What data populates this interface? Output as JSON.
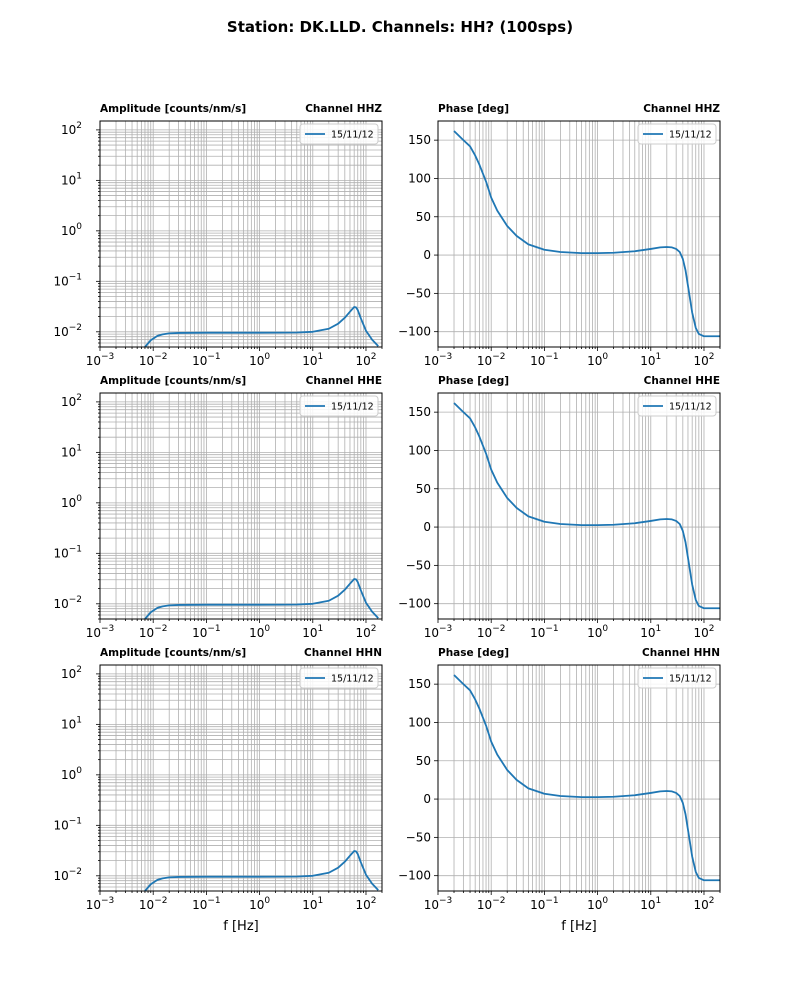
{
  "figure": {
    "suptitle": "Station: DK.LLD. Channels: HH? (100sps)"
  },
  "colors": {
    "line": "#1f77b4",
    "grid": "#b0b0b0"
  },
  "chart_data": [
    {
      "type": "line",
      "kind": "amplitude",
      "xscale": "log",
      "yscale": "log",
      "title": "Amplitude [counts/nm/s]",
      "channel_label": "Channel HHZ",
      "xlabel": "",
      "xlim": [
        0.001,
        200
      ],
      "ylim": [
        0.005,
        150
      ],
      "yticks": [
        0.01,
        0.1,
        1,
        10,
        100
      ],
      "series": [
        {
          "name": "15/11/12",
          "x": [
            0.007,
            0.009,
            0.012,
            0.015,
            0.02,
            0.03,
            0.1,
            1,
            5,
            10,
            20,
            30,
            40,
            50,
            60,
            65,
            70,
            80,
            100,
            130,
            170
          ],
          "y": [
            0.005,
            0.0068,
            0.0083,
            0.0089,
            0.0093,
            0.0095,
            0.0096,
            0.0096,
            0.0097,
            0.01,
            0.0115,
            0.0145,
            0.019,
            0.025,
            0.031,
            0.0305,
            0.027,
            0.0185,
            0.0105,
            0.007,
            0.0052
          ]
        }
      ],
      "legend_loc": "upper-right"
    },
    {
      "type": "line",
      "kind": "phase",
      "xscale": "log",
      "yscale": "linear",
      "title": "Phase [deg]",
      "channel_label": "Channel HHZ",
      "xlabel": "",
      "xlim": [
        0.001,
        200
      ],
      "ylim": [
        -120,
        175
      ],
      "yticks": [
        -100,
        -50,
        0,
        50,
        100,
        150
      ],
      "series": [
        {
          "name": "15/11/12",
          "x": [
            0.002,
            0.003,
            0.004,
            0.005,
            0.006,
            0.008,
            0.01,
            0.013,
            0.02,
            0.03,
            0.05,
            0.1,
            0.2,
            0.5,
            1,
            2,
            5,
            10,
            15,
            20,
            25,
            30,
            35,
            40,
            45,
            50,
            60,
            70,
            80,
            100,
            130,
            200
          ],
          "y": [
            162,
            150,
            142,
            130,
            118,
            96,
            75,
            58,
            38,
            25,
            14,
            7,
            4,
            2.5,
            2.5,
            3,
            5,
            8,
            10,
            10.5,
            10,
            8,
            4,
            -5,
            -20,
            -40,
            -75,
            -95,
            -103,
            -106,
            -106,
            -106
          ]
        }
      ],
      "legend_loc": "upper-right"
    },
    {
      "type": "line",
      "kind": "amplitude",
      "xscale": "log",
      "yscale": "log",
      "title": "Amplitude [counts/nm/s]",
      "channel_label": "Channel HHE",
      "xlabel": "",
      "xlim": [
        0.001,
        200
      ],
      "ylim": [
        0.005,
        150
      ],
      "yticks": [
        0.01,
        0.1,
        1,
        10,
        100
      ],
      "series": [
        {
          "name": "15/11/12",
          "x": [
            0.007,
            0.009,
            0.012,
            0.015,
            0.02,
            0.03,
            0.1,
            1,
            5,
            10,
            20,
            30,
            40,
            50,
            60,
            65,
            70,
            80,
            100,
            130,
            170
          ],
          "y": [
            0.005,
            0.0068,
            0.0083,
            0.0089,
            0.0093,
            0.0095,
            0.0096,
            0.0096,
            0.0097,
            0.01,
            0.0115,
            0.0145,
            0.019,
            0.025,
            0.031,
            0.0305,
            0.027,
            0.0185,
            0.0105,
            0.007,
            0.0052
          ]
        }
      ],
      "legend_loc": "upper-right"
    },
    {
      "type": "line",
      "kind": "phase",
      "xscale": "log",
      "yscale": "linear",
      "title": "Phase [deg]",
      "channel_label": "Channel HHE",
      "xlabel": "",
      "xlim": [
        0.001,
        200
      ],
      "ylim": [
        -120,
        175
      ],
      "yticks": [
        -100,
        -50,
        0,
        50,
        100,
        150
      ],
      "series": [
        {
          "name": "15/11/12",
          "x": [
            0.002,
            0.003,
            0.004,
            0.005,
            0.006,
            0.008,
            0.01,
            0.013,
            0.02,
            0.03,
            0.05,
            0.1,
            0.2,
            0.5,
            1,
            2,
            5,
            10,
            15,
            20,
            25,
            30,
            35,
            40,
            45,
            50,
            60,
            70,
            80,
            100,
            130,
            200
          ],
          "y": [
            162,
            150,
            142,
            130,
            118,
            96,
            75,
            58,
            38,
            25,
            14,
            7,
            4,
            2.5,
            2.5,
            3,
            5,
            8,
            10,
            10.5,
            10,
            8,
            4,
            -5,
            -20,
            -40,
            -75,
            -95,
            -103,
            -106,
            -106,
            -106
          ]
        }
      ],
      "legend_loc": "upper-right"
    },
    {
      "type": "line",
      "kind": "amplitude",
      "xscale": "log",
      "yscale": "log",
      "title": "Amplitude [counts/nm/s]",
      "channel_label": "Channel HHN",
      "xlabel": "f [Hz]",
      "xlim": [
        0.001,
        200
      ],
      "ylim": [
        0.005,
        150
      ],
      "yticks": [
        0.01,
        0.1,
        1,
        10,
        100
      ],
      "series": [
        {
          "name": "15/11/12",
          "x": [
            0.007,
            0.009,
            0.012,
            0.015,
            0.02,
            0.03,
            0.1,
            1,
            5,
            10,
            20,
            30,
            40,
            50,
            60,
            65,
            70,
            80,
            100,
            130,
            170
          ],
          "y": [
            0.005,
            0.0068,
            0.0083,
            0.0089,
            0.0093,
            0.0095,
            0.0096,
            0.0096,
            0.0097,
            0.01,
            0.0115,
            0.0145,
            0.019,
            0.025,
            0.031,
            0.0305,
            0.027,
            0.0185,
            0.0105,
            0.007,
            0.0052
          ]
        }
      ],
      "legend_loc": "upper-right"
    },
    {
      "type": "line",
      "kind": "phase",
      "xscale": "log",
      "yscale": "linear",
      "title": "Phase [deg]",
      "channel_label": "Channel HHN",
      "xlabel": "f [Hz]",
      "xlim": [
        0.001,
        200
      ],
      "ylim": [
        -120,
        175
      ],
      "yticks": [
        -100,
        -50,
        0,
        50,
        100,
        150
      ],
      "series": [
        {
          "name": "15/11/12",
          "x": [
            0.002,
            0.003,
            0.004,
            0.005,
            0.006,
            0.008,
            0.01,
            0.013,
            0.02,
            0.03,
            0.05,
            0.1,
            0.2,
            0.5,
            1,
            2,
            5,
            10,
            15,
            20,
            25,
            30,
            35,
            40,
            45,
            50,
            60,
            70,
            80,
            100,
            130,
            200
          ],
          "y": [
            162,
            150,
            142,
            130,
            118,
            96,
            75,
            58,
            38,
            25,
            14,
            7,
            4,
            2.5,
            2.5,
            3,
            5,
            8,
            10,
            10.5,
            10,
            8,
            4,
            -5,
            -20,
            -40,
            -75,
            -95,
            -103,
            -106,
            -106,
            -106
          ]
        }
      ],
      "legend_loc": "upper-right"
    }
  ]
}
